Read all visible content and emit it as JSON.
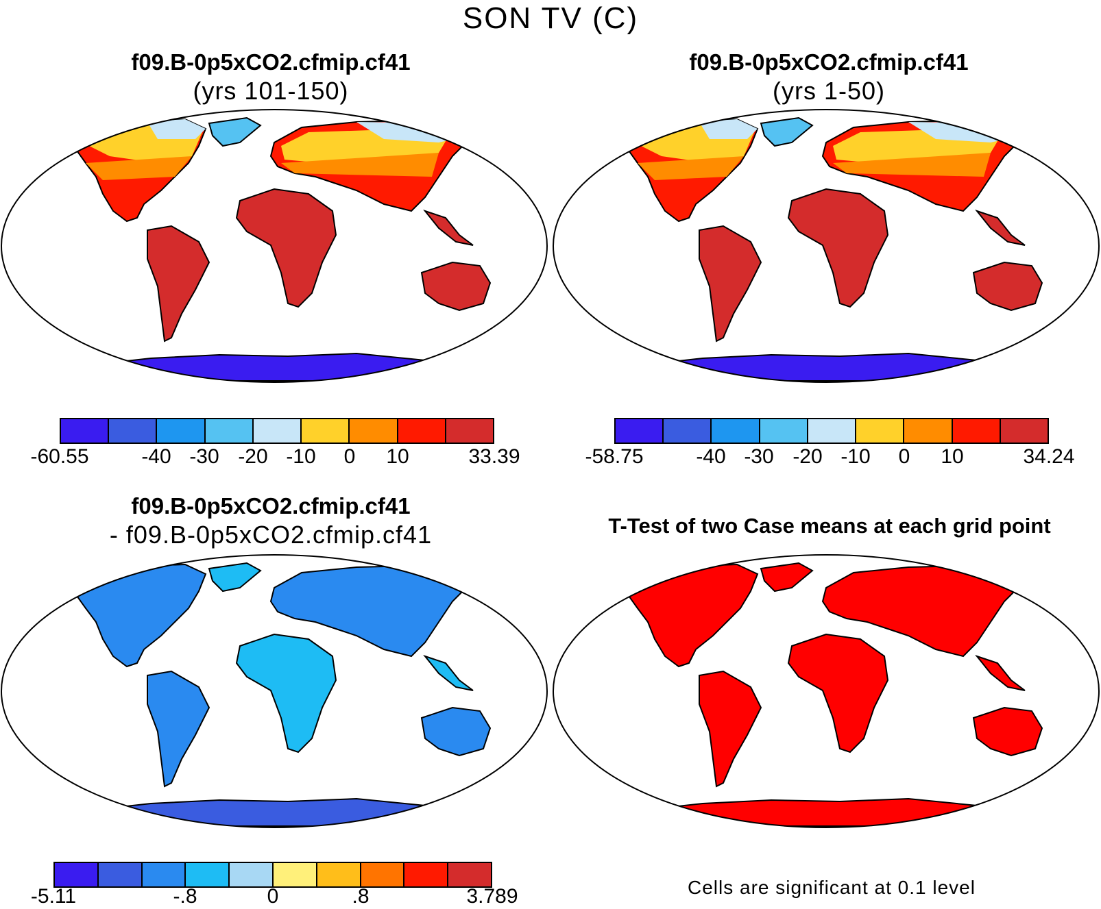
{
  "title": "SON TV (C)",
  "panels": [
    {
      "title": "f09.B-0p5xCO2.cfmip.cf41",
      "subtitle": "(yrs 101-150)",
      "colorbar": {
        "colors": [
          "#3a1cf0",
          "#3a5ce0",
          "#1e96f0",
          "#55c2f2",
          "#c8e6f8",
          "#ffd12a",
          "#ff8c00",
          "#ff1a00",
          "#d42c2c"
        ],
        "labels": [
          "-60.55",
          "-40",
          "-30",
          "-20",
          "-10",
          "0",
          "10",
          "33.39"
        ]
      }
    },
    {
      "title": "f09.B-0p5xCO2.cfmip.cf41",
      "subtitle": "(yrs 1-50)",
      "colorbar": {
        "colors": [
          "#3a1cf0",
          "#3a5ce0",
          "#1e96f0",
          "#55c2f2",
          "#c8e6f8",
          "#ffd12a",
          "#ff8c00",
          "#ff1a00",
          "#d42c2c"
        ],
        "labels": [
          "-58.75",
          "-40",
          "-30",
          "-20",
          "-10",
          "0",
          "10",
          "34.24"
        ]
      }
    },
    {
      "title": "f09.B-0p5xCO2.cfmip.cf41",
      "subtitle": "- f09.B-0p5xCO2.cfmip.cf41",
      "colorbar": {
        "colors": [
          "#3a1cf0",
          "#3a5ce0",
          "#2a8af0",
          "#1ebcf4",
          "#a8d8f4",
          "#fff07a",
          "#ffbe1a",
          "#ff7400",
          "#ff1a00",
          "#d42c2c"
        ],
        "labels": [
          "-5.11",
          "-.8",
          "0",
          ".8",
          "3.789"
        ]
      }
    },
    {
      "title": "T-Test of two Case means at each grid point",
      "note": "Cells are significant at 0.1 level"
    }
  ]
}
